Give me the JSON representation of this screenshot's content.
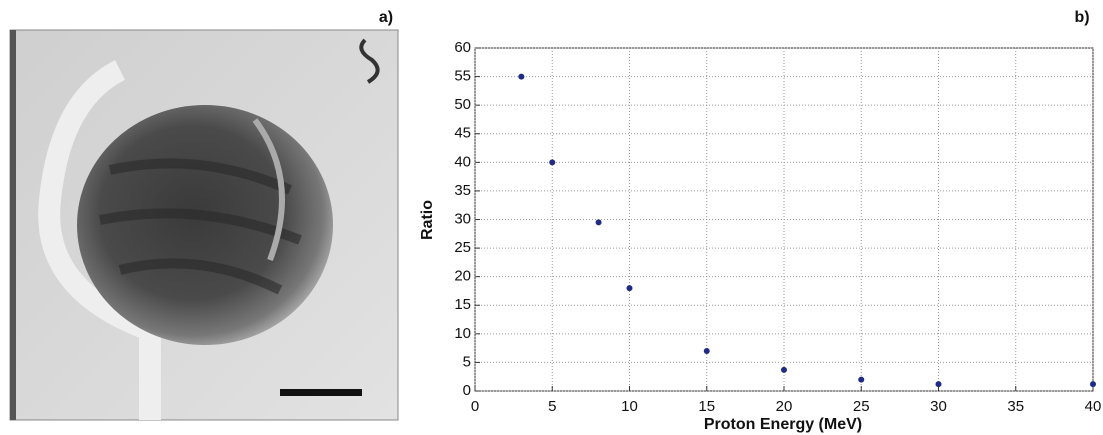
{
  "image_panel": {
    "label": "a)"
  },
  "chart_data": {
    "type": "scatter",
    "annotation": "b)",
    "x_label": "Proton Energy (MeV)",
    "y_label": "Ratio",
    "series": [
      {
        "name": "Ratio",
        "color": "#1f2a8a",
        "x": [
          3,
          5,
          8,
          10,
          15,
          20,
          25,
          30,
          40
        ],
        "values": [
          55,
          40,
          29.5,
          18,
          7,
          3.7,
          2,
          1.2,
          1.2
        ]
      }
    ],
    "xlim": [
      0,
      40
    ],
    "xticks": [
      0,
      5,
      10,
      15,
      20,
      25,
      30,
      35,
      40
    ],
    "ylim": [
      0,
      60
    ],
    "yticks": [
      0,
      5,
      10,
      15,
      20,
      25,
      30,
      35,
      40,
      45,
      50,
      55,
      60
    ],
    "grid": true
  }
}
